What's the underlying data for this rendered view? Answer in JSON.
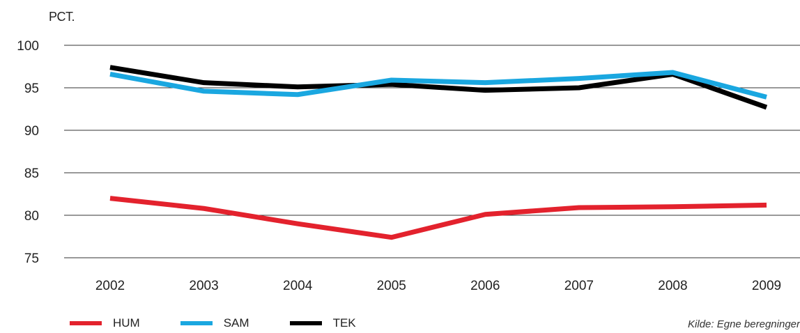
{
  "unit_label": "PCT.",
  "source_note": "Kilde: Egne beregninger",
  "colors": {
    "HUM": "#e3222d",
    "SAM": "#1aa7e0",
    "TEK": "#000000",
    "grid": "#333333",
    "text": "#222222"
  },
  "chart_data": {
    "type": "line",
    "title": "",
    "xlabel": "",
    "ylabel": "PCT.",
    "categories": [
      "2002",
      "2003",
      "2004",
      "2005",
      "2006",
      "2007",
      "2008",
      "2009"
    ],
    "ylim": [
      75,
      100
    ],
    "yticks": [
      75,
      80,
      85,
      90,
      95,
      100
    ],
    "grid": true,
    "legend": "bottom-left",
    "series": [
      {
        "name": "HUM",
        "values": [
          82.0,
          80.8,
          79.0,
          77.4,
          80.1,
          80.9,
          81.0,
          81.2
        ]
      },
      {
        "name": "SAM",
        "values": [
          96.6,
          94.6,
          94.2,
          95.9,
          95.6,
          96.1,
          96.8,
          93.9
        ]
      },
      {
        "name": "TEK",
        "values": [
          97.4,
          95.6,
          95.1,
          95.4,
          94.7,
          95.0,
          96.6,
          92.7
        ]
      }
    ]
  }
}
